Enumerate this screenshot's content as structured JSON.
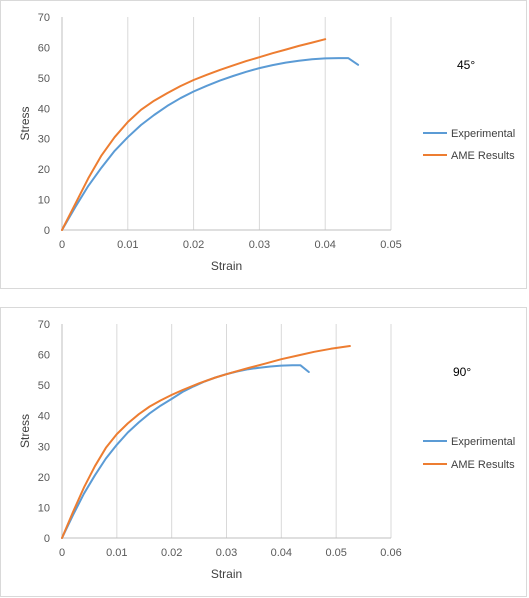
{
  "colors": {
    "experimental": "#5b9bd5",
    "ame": "#ed7d31",
    "grid": "#d9d9d9",
    "axis": "#bfbfbf"
  },
  "chart_data": [
    {
      "type": "line",
      "title": "",
      "annotation": "45°",
      "xlabel": "Strain",
      "ylabel": "Stress",
      "xlim": [
        0,
        0.05
      ],
      "ylim": [
        0,
        70
      ],
      "xticks": [
        0,
        0.01,
        0.02,
        0.03,
        0.04,
        0.05
      ],
      "xtick_labels": [
        "0",
        "0.01",
        "0.02",
        "0.03",
        "0.04",
        "0.05"
      ],
      "yticks": [
        0,
        10,
        20,
        30,
        40,
        50,
        60,
        70
      ],
      "ytick_labels": [
        "0",
        "10",
        "20",
        "30",
        "40",
        "50",
        "60",
        "70"
      ],
      "grid": "vertical",
      "legend_position": "right",
      "series": [
        {
          "name": "Experimental",
          "color_key": "experimental",
          "x": [
            0,
            0.002,
            0.004,
            0.006,
            0.008,
            0.01,
            0.012,
            0.014,
            0.016,
            0.018,
            0.02,
            0.022,
            0.024,
            0.026,
            0.028,
            0.03,
            0.032,
            0.034,
            0.036,
            0.038,
            0.04,
            0.042,
            0.0435,
            0.045
          ],
          "y": [
            0,
            7.5,
            14.5,
            20.5,
            26,
            30.5,
            34.5,
            37.8,
            40.8,
            43.3,
            45.5,
            47.4,
            49.1,
            50.6,
            52,
            53.2,
            54.2,
            55,
            55.6,
            56.1,
            56.4,
            56.5,
            56.5,
            54.3
          ]
        },
        {
          "name": "AME Results",
          "color_key": "ame",
          "x": [
            0,
            0.002,
            0.004,
            0.006,
            0.008,
            0.01,
            0.012,
            0.014,
            0.016,
            0.018,
            0.02,
            0.022,
            0.024,
            0.026,
            0.028,
            0.03,
            0.032,
            0.034,
            0.036,
            0.038,
            0.04
          ],
          "y": [
            0,
            8.5,
            17,
            24.5,
            30.5,
            35.5,
            39.5,
            42.5,
            45,
            47.3,
            49.3,
            51,
            52.6,
            54.1,
            55.5,
            56.8,
            58.1,
            59.3,
            60.5,
            61.6,
            62.7
          ]
        }
      ]
    },
    {
      "type": "line",
      "title": "",
      "annotation": "90°",
      "xlabel": "Strain",
      "ylabel": "Stress",
      "xlim": [
        0,
        0.06
      ],
      "ylim": [
        0,
        70
      ],
      "xticks": [
        0,
        0.01,
        0.02,
        0.03,
        0.04,
        0.05,
        0.06
      ],
      "xtick_labels": [
        "0",
        "0.01",
        "0.02",
        "0.03",
        "0.04",
        "0.05",
        "0.06"
      ],
      "yticks": [
        0,
        10,
        20,
        30,
        40,
        50,
        60,
        70
      ],
      "ytick_labels": [
        "0",
        "10",
        "20",
        "30",
        "40",
        "50",
        "60",
        "70"
      ],
      "grid": "vertical",
      "legend_position": "right",
      "series": [
        {
          "name": "Experimental",
          "color_key": "experimental",
          "x": [
            0,
            0.002,
            0.004,
            0.006,
            0.008,
            0.01,
            0.012,
            0.014,
            0.016,
            0.018,
            0.02,
            0.022,
            0.024,
            0.026,
            0.028,
            0.03,
            0.032,
            0.034,
            0.036,
            0.038,
            0.04,
            0.042,
            0.0435,
            0.045
          ],
          "y": [
            0,
            7.5,
            14.5,
            20.5,
            26,
            30.5,
            34.5,
            37.8,
            40.8,
            43.3,
            45.5,
            47.8,
            49.6,
            51.2,
            52.5,
            53.6,
            54.5,
            55.2,
            55.7,
            56.1,
            56.4,
            56.5,
            56.5,
            54.3
          ]
        },
        {
          "name": "AME Results",
          "color_key": "ame",
          "x": [
            0,
            0.002,
            0.004,
            0.006,
            0.008,
            0.01,
            0.012,
            0.014,
            0.016,
            0.018,
            0.02,
            0.022,
            0.025,
            0.028,
            0.031,
            0.034,
            0.037,
            0.04,
            0.043,
            0.046,
            0.049,
            0.0525
          ],
          "y": [
            0,
            8.5,
            16.5,
            23.5,
            29.5,
            34,
            37.5,
            40.5,
            43,
            45,
            46.8,
            48.4,
            50.6,
            52.5,
            54.1,
            55.6,
            57,
            58.5,
            59.7,
            60.9,
            61.9,
            62.8
          ]
        }
      ]
    }
  ]
}
